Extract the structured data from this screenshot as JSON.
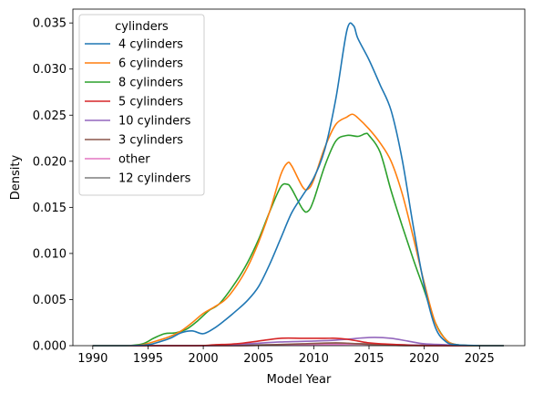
{
  "chart_data": {
    "type": "line",
    "title": "",
    "xlabel": "Model Year",
    "ylabel": "Density",
    "xlim": [
      1988.2,
      2029.1
    ],
    "ylim": [
      0,
      0.0365
    ],
    "xticks": [
      1990,
      1995,
      2000,
      2005,
      2010,
      2015,
      2020,
      2025
    ],
    "yticks": [
      0.0,
      0.005,
      0.01,
      0.015,
      0.02,
      0.025,
      0.03,
      0.035
    ],
    "ytick_labels": [
      "0.000",
      "0.005",
      "0.010",
      "0.015",
      "0.020",
      "0.025",
      "0.030",
      "0.035"
    ],
    "grid": false,
    "legend": {
      "title": "cylinders",
      "placement": "top-left"
    },
    "series": [
      {
        "name": "4 cylinders",
        "color": "#1f77b4",
        "points": [
          [
            1990,
            0
          ],
          [
            1993,
            0
          ],
          [
            1995,
            0.0001
          ],
          [
            1996,
            0.0004
          ],
          [
            1997,
            0.0008
          ],
          [
            1998,
            0.0014
          ],
          [
            1999,
            0.0016
          ],
          [
            2000,
            0.0013
          ],
          [
            2001,
            0.0019
          ],
          [
            2002,
            0.0028
          ],
          [
            2003,
            0.0038
          ],
          [
            2004,
            0.0049
          ],
          [
            2005,
            0.0064
          ],
          [
            2006,
            0.0088
          ],
          [
            2007,
            0.0116
          ],
          [
            2008,
            0.0144
          ],
          [
            2009,
            0.0163
          ],
          [
            2010,
            0.0182
          ],
          [
            2011,
            0.0213
          ],
          [
            2012,
            0.0268
          ],
          [
            2013,
            0.0342
          ],
          [
            2013.6,
            0.0347
          ],
          [
            2014,
            0.0333
          ],
          [
            2015,
            0.031
          ],
          [
            2016,
            0.0283
          ],
          [
            2017,
            0.0255
          ],
          [
            2018,
            0.0202
          ],
          [
            2019,
            0.013
          ],
          [
            2020,
            0.0065
          ],
          [
            2021,
            0.002
          ],
          [
            2022,
            0.0004
          ],
          [
            2023,
            0.0001
          ],
          [
            2025,
            0
          ],
          [
            2027.2,
            0
          ]
        ]
      },
      {
        "name": "6 cylinders",
        "color": "#ff7f0e",
        "points": [
          [
            1990,
            0
          ],
          [
            1993,
            0
          ],
          [
            1994.5,
            0.0001
          ],
          [
            1996,
            0.0006
          ],
          [
            1997,
            0.001
          ],
          [
            1998,
            0.0016
          ],
          [
            1999,
            0.0025
          ],
          [
            2000,
            0.0035
          ],
          [
            2001,
            0.0042
          ],
          [
            2002,
            0.005
          ],
          [
            2003,
            0.0065
          ],
          [
            2004,
            0.0085
          ],
          [
            2005,
            0.0112
          ],
          [
            2006,
            0.0145
          ],
          [
            2007,
            0.0185
          ],
          [
            2007.6,
            0.0198
          ],
          [
            2008,
            0.0195
          ],
          [
            2009,
            0.0172
          ],
          [
            2009.5,
            0.017
          ],
          [
            2010,
            0.018
          ],
          [
            2011,
            0.0215
          ],
          [
            2012,
            0.024
          ],
          [
            2013,
            0.0248
          ],
          [
            2013.5,
            0.0251
          ],
          [
            2014,
            0.0247
          ],
          [
            2015,
            0.0235
          ],
          [
            2016,
            0.022
          ],
          [
            2017,
            0.02
          ],
          [
            2018,
            0.0165
          ],
          [
            2019,
            0.0118
          ],
          [
            2020,
            0.0068
          ],
          [
            2021,
            0.0025
          ],
          [
            2022,
            0.0006
          ],
          [
            2023,
            0.0001
          ],
          [
            2025,
            0
          ],
          [
            2027.2,
            0
          ]
        ]
      },
      {
        "name": "8 cylinders",
        "color": "#2ca02c",
        "points": [
          [
            1990,
            0
          ],
          [
            1993,
            0
          ],
          [
            1994.5,
            0.0002
          ],
          [
            1995.5,
            0.0008
          ],
          [
            1996.5,
            0.0013
          ],
          [
            1997.5,
            0.0014
          ],
          [
            1998.5,
            0.0018
          ],
          [
            1999.5,
            0.0027
          ],
          [
            2000.5,
            0.0038
          ],
          [
            2001.5,
            0.0046
          ],
          [
            2003,
            0.007
          ],
          [
            2004,
            0.009
          ],
          [
            2005,
            0.0115
          ],
          [
            2006,
            0.0145
          ],
          [
            2007,
            0.0172
          ],
          [
            2007.6,
            0.0175
          ],
          [
            2008,
            0.017
          ],
          [
            2009,
            0.0148
          ],
          [
            2009.5,
            0.0146
          ],
          [
            2010,
            0.0158
          ],
          [
            2011,
            0.0195
          ],
          [
            2012,
            0.0222
          ],
          [
            2013,
            0.0228
          ],
          [
            2014,
            0.0227
          ],
          [
            2014.7,
            0.023
          ],
          [
            2015,
            0.0228
          ],
          [
            2016,
            0.021
          ],
          [
            2017,
            0.0168
          ],
          [
            2018,
            0.013
          ],
          [
            2019,
            0.0094
          ],
          [
            2020,
            0.006
          ],
          [
            2021,
            0.0025
          ],
          [
            2022,
            0.0006
          ],
          [
            2023,
            0.0001
          ],
          [
            2025,
            0
          ],
          [
            2027.2,
            0
          ]
        ]
      },
      {
        "name": "5 cylinders",
        "color": "#d62728",
        "points": [
          [
            1990,
            0
          ],
          [
            1999,
            0
          ],
          [
            2001,
            0.0001
          ],
          [
            2003,
            0.0002
          ],
          [
            2005,
            0.0005
          ],
          [
            2007,
            0.0008
          ],
          [
            2009,
            0.0008
          ],
          [
            2011,
            0.0008
          ],
          [
            2012,
            0.0008
          ],
          [
            2013,
            0.0007
          ],
          [
            2014,
            0.0005
          ],
          [
            2015,
            0.0003
          ],
          [
            2016,
            0.0002
          ],
          [
            2018,
            0.0001
          ],
          [
            2020,
            0
          ],
          [
            2027.2,
            0
          ]
        ]
      },
      {
        "name": "10 cylinders",
        "color": "#9467bd",
        "points": [
          [
            1990,
            0
          ],
          [
            2000,
            0
          ],
          [
            2004,
            0.0002
          ],
          [
            2007,
            0.0004
          ],
          [
            2010,
            0.0005
          ],
          [
            2012,
            0.0006
          ],
          [
            2014,
            0.0008
          ],
          [
            2015.5,
            0.0009
          ],
          [
            2017,
            0.0008
          ],
          [
            2018.5,
            0.0005
          ],
          [
            2020,
            0.0002
          ],
          [
            2022,
            0.0001
          ],
          [
            2024,
            0
          ],
          [
            2027.2,
            0
          ]
        ]
      },
      {
        "name": "3 cylinders",
        "color": "#8c564b",
        "points": [
          [
            1990,
            0
          ],
          [
            2003,
            0
          ],
          [
            2006,
            0.0001
          ],
          [
            2009,
            0.0002
          ],
          [
            2012,
            0.0003
          ],
          [
            2014,
            0.0002
          ],
          [
            2016,
            0.0001
          ],
          [
            2019,
            0
          ],
          [
            2027.2,
            0
          ]
        ]
      },
      {
        "name": "other",
        "color": "#e377c2",
        "points": [
          [
            1990,
            0
          ],
          [
            2002,
            0
          ],
          [
            2006,
            5e-05
          ],
          [
            2010,
            0.0001
          ],
          [
            2014,
            0.00015
          ],
          [
            2017,
            0.0001
          ],
          [
            2020,
            3e-05
          ],
          [
            2023,
            0
          ],
          [
            2027.2,
            0
          ]
        ]
      },
      {
        "name": "12 cylinders",
        "color": "#7f7f7f",
        "points": [
          [
            1990,
            0
          ],
          [
            2000,
            0
          ],
          [
            2004,
            0.0001
          ],
          [
            2008,
            0.0001
          ],
          [
            2012,
            0.0002
          ],
          [
            2015,
            0.0002
          ],
          [
            2018,
            0.0001
          ],
          [
            2021,
            5e-05
          ],
          [
            2027.2,
            0
          ]
        ]
      }
    ]
  }
}
